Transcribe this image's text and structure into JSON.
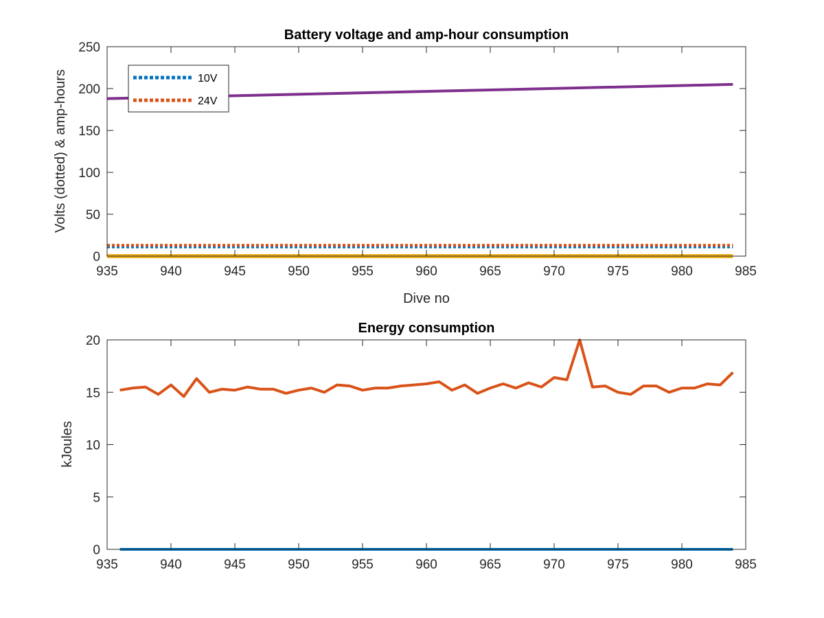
{
  "chart_data": [
    {
      "type": "line",
      "title": "Battery voltage and amp-hour consumption",
      "xlabel": "Dive no",
      "ylabel": "Volts (dotted) & amp-hours",
      "xlim": [
        935,
        985
      ],
      "ylim": [
        0,
        250
      ],
      "xticks": [
        935,
        940,
        945,
        950,
        955,
        960,
        965,
        970,
        975,
        980,
        985
      ],
      "yticks": [
        0,
        50,
        100,
        150,
        200,
        250
      ],
      "grid": false,
      "legend": {
        "position": "top-left",
        "entries": [
          "10V",
          "24V"
        ]
      },
      "series": [
        {
          "name": "10V",
          "style": "dotted",
          "color": "#0072BD",
          "x": [
            935,
            984
          ],
          "y": [
            11,
            11
          ]
        },
        {
          "name": "24V",
          "style": "dotted",
          "color": "#D95319",
          "x": [
            935,
            984
          ],
          "y": [
            13,
            13
          ]
        },
        {
          "style": "solid",
          "color": "#EDB120",
          "x": [
            935,
            984
          ],
          "y": [
            0,
            0
          ]
        },
        {
          "style": "solid",
          "color": "#7E2F8E",
          "x": [
            935,
            984
          ],
          "y": [
            188,
            205
          ]
        }
      ]
    },
    {
      "type": "line",
      "title": "Energy consumption",
      "xlabel": "",
      "ylabel": "kJoules",
      "xlim": [
        935,
        985
      ],
      "ylim": [
        0,
        20
      ],
      "xticks": [
        935,
        940,
        945,
        950,
        955,
        960,
        965,
        970,
        975,
        980,
        985
      ],
      "yticks": [
        0,
        5,
        10,
        15,
        20
      ],
      "grid": false,
      "series": [
        {
          "style": "solid",
          "color": "#0072BD",
          "x": [
            936,
            984
          ],
          "y": [
            0,
            0
          ]
        },
        {
          "style": "solid",
          "color": "#D95319",
          "x": [
            936,
            937,
            938,
            939,
            940,
            941,
            942,
            943,
            944,
            945,
            946,
            947,
            948,
            949,
            950,
            951,
            952,
            953,
            954,
            955,
            956,
            957,
            958,
            959,
            960,
            961,
            962,
            963,
            964,
            965,
            966,
            967,
            968,
            969,
            970,
            971,
            972,
            973,
            974,
            975,
            976,
            977,
            978,
            979,
            980,
            981,
            982,
            983,
            984
          ],
          "y": [
            15.2,
            15.4,
            15.5,
            14.8,
            15.7,
            14.6,
            16.3,
            15.0,
            15.3,
            15.2,
            15.5,
            15.3,
            15.3,
            14.9,
            15.2,
            15.4,
            15.0,
            15.7,
            15.6,
            15.2,
            15.4,
            15.4,
            15.6,
            15.7,
            15.8,
            16.0,
            15.2,
            15.7,
            14.9,
            15.4,
            15.8,
            15.4,
            15.9,
            15.5,
            16.4,
            16.2,
            20.0,
            15.5,
            15.6,
            15.0,
            14.8,
            15.6,
            15.6,
            15.0,
            15.4,
            15.4,
            15.8,
            15.7,
            16.9
          ]
        }
      ]
    }
  ]
}
